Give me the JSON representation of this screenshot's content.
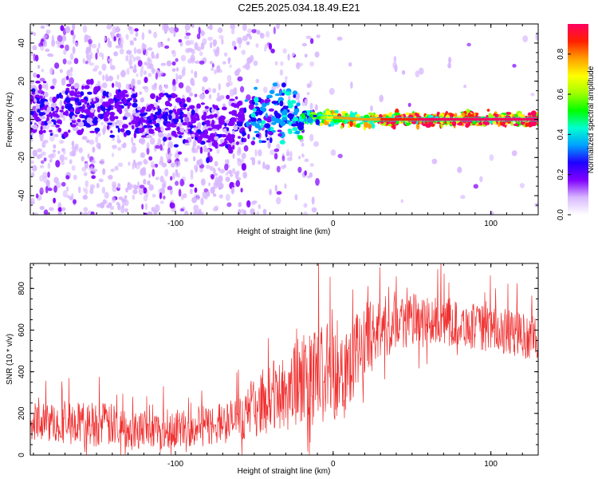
{
  "title": "C2E5.2025.034.18.49.E21",
  "chart_data": [
    {
      "type": "heatmap",
      "xlabel": "Height of straight line (km)",
      "ylabel": "Frequency (Hz)",
      "xlim": [
        -192,
        130
      ],
      "ylim": [
        -50,
        50
      ],
      "x_ticks": [
        -100,
        0,
        100
      ],
      "x_tick_labels": [
        "-100",
        "0",
        "100"
      ],
      "y_ticks": [
        -40,
        -20,
        0,
        20,
        40
      ],
      "y_tick_labels": [
        "-40",
        "-20",
        "0",
        "20",
        "40"
      ],
      "colorbar": {
        "label": "Normalized spectral amplitude",
        "range": [
          0,
          0.95
        ],
        "ticks": [
          0.0,
          0.2,
          0.4,
          0.6,
          0.8
        ],
        "tick_labels": [
          "0.0",
          "0.2",
          "0.4",
          "0.6",
          "0.8"
        ],
        "colors": [
          "#ffffff",
          "#d8b8ff",
          "#8000ff",
          "#2000ff",
          "#00a0ff",
          "#00ffd0",
          "#00ff00",
          "#a0ff00",
          "#ffff00",
          "#ffa000",
          "#ff2000",
          "#ff0060"
        ]
      },
      "ridge": [
        {
          "x": -190,
          "freq": 5,
          "amp": 0.2
        },
        {
          "x": -150,
          "freq": 5,
          "amp": 0.22
        },
        {
          "x": -110,
          "freq": 2,
          "amp": 0.22
        },
        {
          "x": -80,
          "freq": -3,
          "amp": 0.2
        },
        {
          "x": -60,
          "freq": -4,
          "amp": 0.2
        },
        {
          "x": -50,
          "freq": 5,
          "amp": 0.35
        },
        {
          "x": -30,
          "freq": 1,
          "amp": 0.35
        },
        {
          "x": -10,
          "freq": 1,
          "amp": 0.55
        },
        {
          "x": 0,
          "freq": 1,
          "amp": 0.75
        },
        {
          "x": 20,
          "freq": 0,
          "amp": 0.75
        },
        {
          "x": 40,
          "freq": 0,
          "amp": 0.9
        },
        {
          "x": 130,
          "freq": 0,
          "amp": 0.95
        }
      ]
    },
    {
      "type": "line",
      "xlabel": "Height of straight line (km)",
      "ylabel": "SNR (10 * v/v)",
      "xlim": [
        -192,
        130
      ],
      "ylim": [
        0,
        920
      ],
      "x_ticks": [
        -100,
        0,
        100
      ],
      "x_tick_labels": [
        "-100",
        "0",
        "100"
      ],
      "y_ticks": [
        0,
        200,
        400,
        600,
        800
      ],
      "y_tick_labels": [
        "0",
        "200",
        "400",
        "600",
        "800"
      ],
      "line_color": "#f03030",
      "envelope": [
        {
          "x": -192,
          "base": 160,
          "spread": 90
        },
        {
          "x": -150,
          "base": 150,
          "spread": 110
        },
        {
          "x": -110,
          "base": 120,
          "spread": 90
        },
        {
          "x": -80,
          "base": 140,
          "spread": 100
        },
        {
          "x": -60,
          "base": 170,
          "spread": 110
        },
        {
          "x": -45,
          "base": 250,
          "spread": 150
        },
        {
          "x": -25,
          "base": 330,
          "spread": 220
        },
        {
          "x": -10,
          "base": 380,
          "spread": 260
        },
        {
          "x": 5,
          "base": 400,
          "spread": 220
        },
        {
          "x": 20,
          "base": 550,
          "spread": 180
        },
        {
          "x": 40,
          "base": 650,
          "spread": 140
        },
        {
          "x": 80,
          "base": 630,
          "spread": 110
        },
        {
          "x": 110,
          "base": 590,
          "spread": 110
        },
        {
          "x": 130,
          "base": 560,
          "spread": 110
        }
      ]
    }
  ]
}
